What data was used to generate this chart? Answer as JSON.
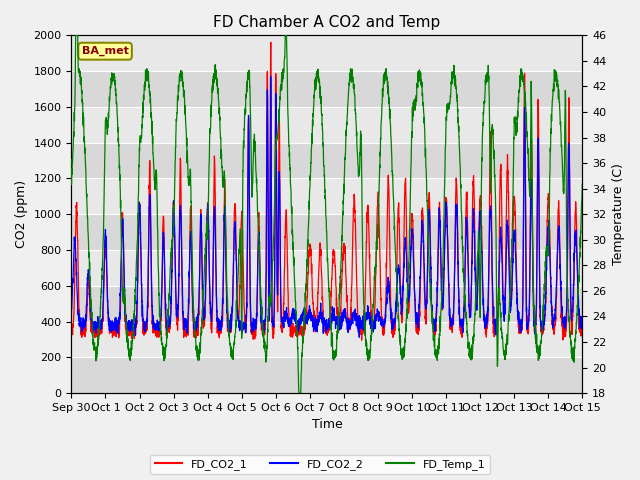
{
  "title": "FD Chamber A CO2 and Temp",
  "xlabel": "Time",
  "ylabel_left": "CO2 (ppm)",
  "ylabel_right": "Temperature (C)",
  "ylim_left": [
    0,
    2000
  ],
  "ylim_right": [
    18,
    46
  ],
  "legend_labels": [
    "FD_CO2_1",
    "FD_CO2_2",
    "FD_Temp_1"
  ],
  "legend_colors": [
    "red",
    "blue",
    "green"
  ],
  "annotation_text": "BA_met",
  "annotation_bg": "#FFFF99",
  "annotation_border": "#888800",
  "plot_bg_color": "#e0e0e0",
  "fig_bg_color": "#f0f0f0",
  "band_colors": [
    "#d8d8d8",
    "#e8e8e8"
  ],
  "xtick_labels": [
    "Sep 30",
    "Oct 1",
    "Oct 2",
    "Oct 3",
    "Oct 4",
    "Oct 5",
    "Oct 6",
    "Oct 7",
    "Oct 8",
    "Oct 9",
    "Oct 10",
    "Oct 11",
    "Oct 12",
    "Oct 13",
    "Oct 14",
    "Oct 15"
  ],
  "ytick_left": [
    0,
    200,
    400,
    600,
    800,
    1000,
    1200,
    1400,
    1600,
    1800,
    2000
  ],
  "ytick_right": [
    18,
    20,
    22,
    24,
    26,
    28,
    30,
    32,
    34,
    36,
    38,
    40,
    42,
    44,
    46
  ],
  "title_fontsize": 11,
  "axis_fontsize": 9,
  "tick_fontsize": 8,
  "line_width": 0.9
}
